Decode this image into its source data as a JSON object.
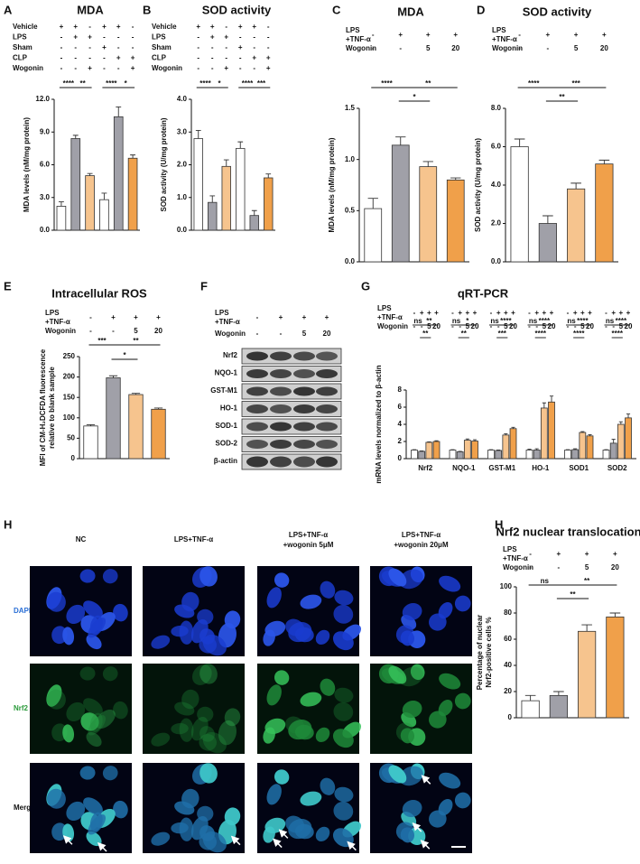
{
  "chart_data": [
    {
      "panel": "A",
      "type": "bar",
      "title": "MDA",
      "conditions": [
        {
          "label": [
            "Vehicle"
          ],
          "values": [
            "+",
            "+",
            "-",
            "+",
            "+",
            "-"
          ]
        },
        {
          "label": [
            "LPS"
          ],
          "values": [
            "-",
            "+",
            "+",
            "-",
            "-",
            "-"
          ]
        },
        {
          "label": [
            "Sham"
          ],
          "values": [
            "-",
            "-",
            "-",
            "+",
            "-",
            "-"
          ]
        },
        {
          "label": [
            "CLP"
          ],
          "values": [
            "-",
            "-",
            "-",
            "-",
            "+",
            "+"
          ]
        },
        {
          "label": [
            "Wogonin"
          ],
          "values": [
            "-",
            "-",
            "+",
            "-",
            "-",
            "+"
          ]
        }
      ],
      "values": [
        2.2,
        8.4,
        5.0,
        2.8,
        10.4,
        6.6
      ],
      "errors": [
        0.4,
        0.3,
        0.2,
        0.6,
        0.9,
        0.3
      ],
      "colors": [
        "#ffffff",
        "#a0a0a8",
        "#f6c48e",
        "#ffffff",
        "#a0a0a8",
        "#f0a04a"
      ],
      "ylabel": [
        "MDA levels (nM/mg protein)"
      ],
      "ylim": [
        0,
        12
      ],
      "yticks": [
        {
          "value": 0,
          "label": "0.0"
        },
        {
          "value": 3,
          "label": "3.0"
        },
        {
          "value": 6,
          "label": "6.0"
        },
        {
          "value": 9,
          "label": "9.0"
        },
        {
          "value": 12,
          "label": "12.0"
        }
      ],
      "significance": [
        {
          "label": "****",
          "pair": [
            0,
            1
          ]
        },
        {
          "label": "**",
          "pair": [
            1,
            2
          ]
        },
        {
          "label": "****",
          "pair": [
            3,
            4
          ]
        },
        {
          "label": "*",
          "pair": [
            4,
            5
          ]
        }
      ]
    },
    {
      "panel": "B",
      "type": "bar",
      "title": "SOD activity",
      "conditions": [
        {
          "label": [
            "Vehicle"
          ],
          "values": [
            "+",
            "+",
            "-",
            "+",
            "+",
            "-"
          ]
        },
        {
          "label": [
            "LPS"
          ],
          "values": [
            "-",
            "+",
            "+",
            "-",
            "-",
            "-"
          ]
        },
        {
          "label": [
            "Sham"
          ],
          "values": [
            "-",
            "-",
            "-",
            "+",
            "-",
            "-"
          ]
        },
        {
          "label": [
            "CLP"
          ],
          "values": [
            "-",
            "-",
            "-",
            "-",
            "+",
            "+"
          ]
        },
        {
          "label": [
            "Wogonin"
          ],
          "values": [
            "-",
            "-",
            "+",
            "-",
            "-",
            "+"
          ]
        }
      ],
      "values": [
        2.8,
        0.85,
        1.95,
        2.5,
        0.45,
        1.6
      ],
      "errors": [
        0.25,
        0.2,
        0.2,
        0.2,
        0.15,
        0.12
      ],
      "colors": [
        "#ffffff",
        "#a0a0a8",
        "#f6c48e",
        "#ffffff",
        "#a0a0a8",
        "#f0a04a"
      ],
      "ylabel": [
        "SOD activity (U/mg protein)"
      ],
      "ylim": [
        0,
        4
      ],
      "yticks": [
        {
          "value": 0,
          "label": "0.0"
        },
        {
          "value": 1,
          "label": "1.0"
        },
        {
          "value": 2,
          "label": "2.0"
        },
        {
          "value": 3,
          "label": "3.0"
        },
        {
          "value": 4,
          "label": "4.0"
        }
      ],
      "significance": [
        {
          "label": "****",
          "pair": [
            0,
            1
          ]
        },
        {
          "label": "*",
          "pair": [
            1,
            2
          ]
        },
        {
          "label": "****",
          "pair": [
            3,
            4
          ]
        },
        {
          "label": "***",
          "pair": [
            4,
            5
          ]
        }
      ]
    },
    {
      "panel": "C",
      "type": "bar",
      "title": "MDA",
      "conditions": [
        {
          "label": [
            "LPS",
            "+TNF-α"
          ],
          "values": [
            "-",
            "+",
            "+",
            "+"
          ]
        },
        {
          "label": [
            "Wogonin"
          ],
          "values": [
            "-",
            "-",
            "5",
            "20"
          ]
        }
      ],
      "values": [
        0.52,
        1.14,
        0.93,
        0.8
      ],
      "errors": [
        0.1,
        0.08,
        0.05,
        0.02
      ],
      "colors": [
        "#ffffff",
        "#a0a0a8",
        "#f6c48e",
        "#f0a04a"
      ],
      "ylabel": [
        "MDA levels (nM/mg protein)"
      ],
      "ylim": [
        0,
        1.5
      ],
      "yticks": [
        {
          "value": 0,
          "label": "0.0"
        },
        0.5,
        {
          "value": 1,
          "label": "1.0"
        },
        1.5
      ],
      "significance": [
        {
          "label": "****",
          "pair": [
            0,
            1
          ]
        },
        {
          "label": "**",
          "pair": [
            1,
            3
          ]
        },
        {
          "label": "*",
          "pair": [
            1,
            2
          ]
        }
      ]
    },
    {
      "panel": "D",
      "type": "bar",
      "title": "SOD activity",
      "conditions": [
        {
          "label": [
            "LPS",
            "+TNF-α"
          ],
          "values": [
            "-",
            "+",
            "+",
            "+"
          ]
        },
        {
          "label": [
            "Wogonin"
          ],
          "values": [
            "-",
            "-",
            "5",
            "20"
          ]
        }
      ],
      "values": [
        6.0,
        2.0,
        3.8,
        5.1
      ],
      "errors": [
        0.4,
        0.4,
        0.3,
        0.2
      ],
      "colors": [
        "#ffffff",
        "#a0a0a8",
        "#f6c48e",
        "#f0a04a"
      ],
      "ylabel": [
        "SOD activity (U/mg protein)"
      ],
      "ylim": [
        0,
        8
      ],
      "yticks": [
        {
          "value": 0,
          "label": "0.0"
        },
        {
          "value": 2,
          "label": "2.0"
        },
        {
          "value": 4,
          "label": "4.0"
        },
        {
          "value": 6,
          "label": "6.0"
        },
        {
          "value": 8,
          "label": "8.0"
        }
      ],
      "significance": [
        {
          "label": "****",
          "pair": [
            0,
            1
          ]
        },
        {
          "label": "***",
          "pair": [
            1,
            3
          ]
        },
        {
          "label": "**",
          "pair": [
            1,
            2
          ]
        }
      ]
    },
    {
      "panel": "E",
      "type": "bar",
      "title": "Intracellular ROS",
      "conditions": [
        {
          "label": [
            "LPS",
            "+TNF-α"
          ],
          "values": [
            "-",
            "+",
            "+",
            "+"
          ]
        },
        {
          "label": [
            "Wogonin"
          ],
          "values": [
            "-",
            "-",
            "5",
            "20"
          ]
        }
      ],
      "values": [
        80,
        198,
        157,
        121
      ],
      "errors": [
        3,
        5,
        3,
        3
      ],
      "colors": [
        "#ffffff",
        "#a0a0a8",
        "#f6c48e",
        "#f0a04a"
      ],
      "ylabel": [
        "MFI of CM-H₂DCFDA fluorescence",
        "relative to blank sample"
      ],
      "ylim": [
        0,
        250
      ],
      "yticks": [
        0,
        50,
        100,
        150,
        200,
        250
      ],
      "significance": [
        {
          "label": "***",
          "pair": [
            0,
            1
          ]
        },
        {
          "label": "**",
          "pair": [
            1,
            3
          ]
        },
        {
          "label": "*",
          "pair": [
            1,
            2
          ]
        }
      ]
    },
    {
      "panel": "G",
      "type": "bar",
      "title": "qRT-PCR",
      "conditions": [
        {
          "label": [
            "LPS",
            "+TNF-α"
          ],
          "values": [
            "-",
            "+",
            "+",
            "+"
          ]
        },
        {
          "label": [
            "Wogonin"
          ],
          "values": [
            "-",
            "-",
            "5",
            "20"
          ]
        }
      ],
      "categories": [
        "Nrf2",
        "NQO-1",
        "GST-M1",
        "HO-1",
        "SOD1",
        "SOD2"
      ],
      "series": [
        {
          "color": "#ffffff",
          "values": [
            1,
            1,
            1,
            1,
            1,
            1
          ],
          "errors": [
            0.05,
            0.05,
            0.05,
            0.1,
            0.05,
            0.05
          ]
        },
        {
          "color": "#a0a0a8",
          "values": [
            0.85,
            0.8,
            0.95,
            1.0,
            1.05,
            1.8
          ],
          "errors": [
            0.05,
            0.05,
            0.05,
            0.15,
            0.1,
            0.45
          ]
        },
        {
          "color": "#f6c48e",
          "values": [
            1.9,
            2.15,
            2.75,
            5.9,
            3.05,
            4.0
          ],
          "errors": [
            0.05,
            0.15,
            0.15,
            0.6,
            0.1,
            0.3
          ]
        },
        {
          "color": "#f0a04a",
          "values": [
            2.0,
            2.05,
            3.5,
            6.6,
            2.65,
            4.75
          ],
          "errors": [
            0.08,
            0.15,
            0.15,
            0.7,
            0.15,
            0.45
          ]
        }
      ],
      "ylabel": [
        "mRNA levels normalized to β-actin"
      ],
      "ylim": [
        0,
        8
      ],
      "yticks": [
        0,
        2,
        4,
        6,
        8
      ],
      "significance": [
        {
          "label": "**",
          "group": 0,
          "pair": [
            1,
            3
          ]
        },
        {
          "label": "**",
          "group": 0,
          "pair": [
            1,
            2
          ]
        },
        {
          "label": "ns",
          "group": 0,
          "pair": [
            0,
            1
          ]
        },
        {
          "label": "*",
          "group": 1,
          "pair": [
            1,
            3
          ]
        },
        {
          "label": "**",
          "group": 1,
          "pair": [
            1,
            2
          ]
        },
        {
          "label": "ns",
          "group": 1,
          "pair": [
            0,
            1
          ]
        },
        {
          "label": "****",
          "group": 2,
          "pair": [
            1,
            3
          ]
        },
        {
          "label": "***",
          "group": 2,
          "pair": [
            1,
            2
          ]
        },
        {
          "label": "ns",
          "group": 2,
          "pair": [
            0,
            1
          ]
        },
        {
          "label": "****",
          "group": 3,
          "pair": [
            1,
            3
          ]
        },
        {
          "label": "****",
          "group": 3,
          "pair": [
            1,
            2
          ]
        },
        {
          "label": "ns",
          "group": 3,
          "pair": [
            0,
            1
          ]
        },
        {
          "label": "****",
          "group": 4,
          "pair": [
            1,
            3
          ]
        },
        {
          "label": "****",
          "group": 4,
          "pair": [
            1,
            2
          ]
        },
        {
          "label": "ns",
          "group": 4,
          "pair": [
            0,
            1
          ]
        },
        {
          "label": "****",
          "group": 5,
          "pair": [
            1,
            3
          ]
        },
        {
          "label": "****",
          "group": 5,
          "pair": [
            1,
            2
          ]
        },
        {
          "label": "ns",
          "group": 5,
          "pair": [
            0,
            1
          ]
        }
      ]
    },
    {
      "panel": "H",
      "type": "bar",
      "title": "Nrf2 nuclear translocation",
      "conditions": [
        {
          "label": [
            "LPS",
            "+TNF-α"
          ],
          "values": [
            "-",
            "+",
            "+",
            "+"
          ]
        },
        {
          "label": [
            "Wogonin"
          ],
          "values": [
            "-",
            "-",
            "5",
            "20"
          ]
        }
      ],
      "values": [
        13,
        17,
        66,
        77
      ],
      "errors": [
        4,
        3,
        5,
        3
      ],
      "colors": [
        "#ffffff",
        "#a0a0a8",
        "#f6c48e",
        "#f0a04a"
      ],
      "ylabel": [
        "Percentage of nuclear",
        "Nrf2-positive cells %"
      ],
      "ylim": [
        0,
        100
      ],
      "yticks": [
        0,
        20,
        40,
        60,
        80,
        100
      ],
      "significance": [
        {
          "label": "**",
          "pair": [
            1,
            3
          ]
        },
        {
          "label": "**",
          "pair": [
            1,
            2
          ]
        },
        {
          "label": "ns",
          "pair": [
            0,
            1
          ]
        }
      ]
    }
  ],
  "blot": {
    "panel": "F",
    "conditions": [
      {
        "label": [
          "LPS",
          "+TNF-α"
        ],
        "values": [
          "-",
          "+",
          "+",
          "+"
        ]
      },
      {
        "label": [
          "Wogonin"
        ],
        "values": [
          "-",
          "-",
          "5",
          "20"
        ]
      }
    ],
    "bands": [
      "Nrf2",
      "NQO-1",
      "GST-M1",
      "HO-1",
      "SOD-1",
      "SOD-2",
      "β-actin"
    ]
  },
  "micrographs": {
    "panel": "H",
    "columns": [
      [
        "NC"
      ],
      [
        "LPS+TNF-α"
      ],
      [
        "LPS+TNF-α",
        "+wogonin 5μM"
      ],
      [
        "LPS+TNF-α",
        "+wogonin 20μM"
      ]
    ],
    "rows": [
      "DAPI",
      "Nrf2",
      "Merge"
    ]
  }
}
